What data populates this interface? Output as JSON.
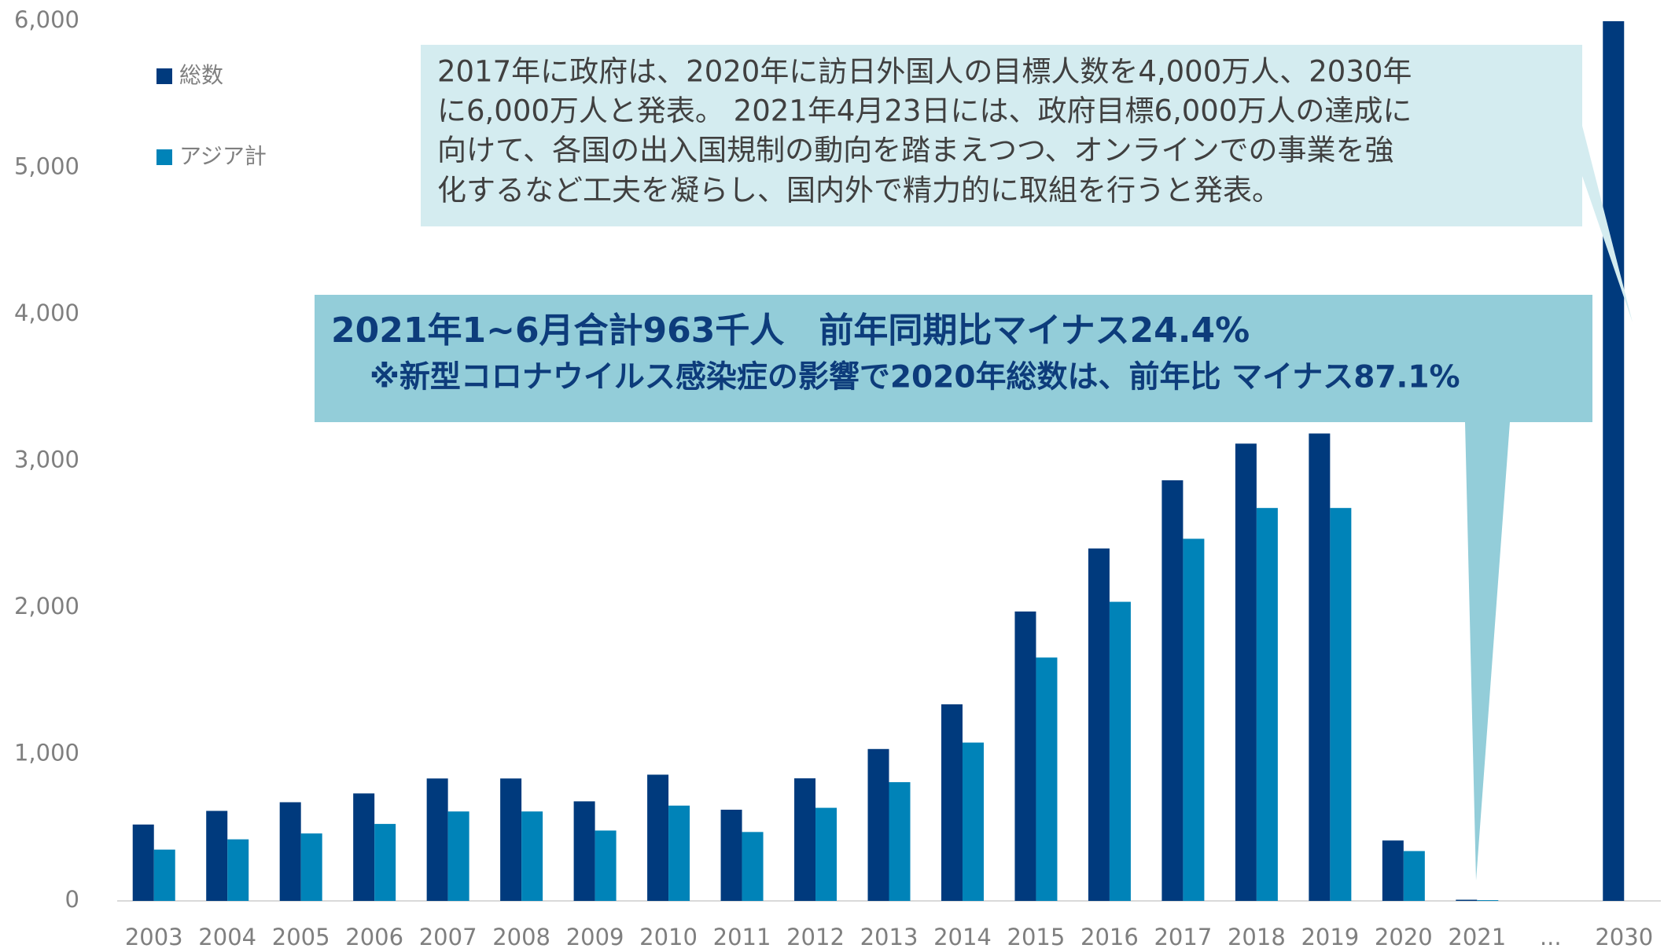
{
  "chart_data": {
    "type": "bar",
    "categories": [
      "2003",
      "2004",
      "2005",
      "2006",
      "2007",
      "2008",
      "2009",
      "2010",
      "2011",
      "2012",
      "2013",
      "2014",
      "2015",
      "2016",
      "2017",
      "2018",
      "2019",
      "2020",
      "2021",
      "...",
      "2030"
    ],
    "series": [
      {
        "name": "総数",
        "color": "#003a7d",
        "values": [
          521,
          614,
          673,
          733,
          835,
          835,
          679,
          861,
          622,
          836,
          1036,
          1341,
          1974,
          2404,
          2869,
          3119,
          3188,
          412,
          8,
          null,
          6000
        ]
      },
      {
        "name": "アジア計",
        "color": "#0083b8",
        "values": [
          350,
          420,
          460,
          525,
          610,
          610,
          480,
          650,
          470,
          635,
          810,
          1080,
          1660,
          2040,
          2470,
          2680,
          2680,
          340,
          5,
          null,
          null
        ]
      }
    ],
    "ylim": [
      0,
      6000
    ],
    "yticks": [
      0,
      {
        "value": 1000,
        "label": "1,000"
      },
      {
        "value": 2000,
        "label": "2,000"
      },
      {
        "value": 3000,
        "label": "3,000"
      },
      {
        "value": 4000,
        "label": "4,000"
      },
      {
        "value": 5000,
        "label": "5,000"
      },
      {
        "value": 6000,
        "label": "6,000"
      }
    ],
    "annotations": [
      {
        "lines": [
          "2017年に政府は、2020年に訪日外国人の目標人数を4,000万人、2030年",
          "に6,000万人と発表。 2021年4月23日には、政府目標6,000万人の達成に",
          "向けて、各国の出入国規制の動向を踏まえつつ、オンラインでの事業を強",
          "化するなど工夫を凝らし、国内外で精力的に取組を行うと発表。"
        ]
      },
      {
        "lines": [
          "2021年1~6月合計963千人　前年同期比マイナス24.4%",
          "※新型コロナウイルス感染症の影響で2020年総数は、前年比 マイナス87.1%"
        ]
      }
    ]
  }
}
